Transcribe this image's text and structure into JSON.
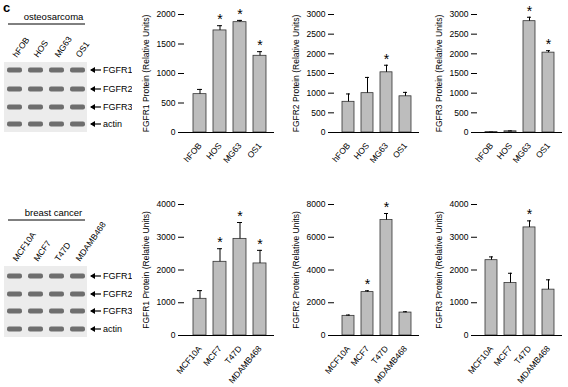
{
  "panel_label": "c",
  "blots": [
    {
      "title": "osteosarcoma",
      "lanes": [
        "hFOB",
        "HOS",
        "MG63",
        "OS1"
      ],
      "bands": [
        "FGFR1",
        "FGFR2",
        "FGFR3",
        "actin"
      ]
    },
    {
      "title": "breast cancer",
      "lanes": [
        "MCF10A",
        "MCF7",
        "T47D",
        "MDAMB468"
      ],
      "bands": [
        "FGFR1",
        "FGFR2",
        "FGFR3",
        "actin"
      ]
    }
  ],
  "chart_data": [
    {
      "type": "bar",
      "y_label": "FGFR1 Protein (Relative Units)",
      "categories": [
        "hFOB",
        "HOS",
        "MG63",
        "OS1"
      ],
      "values": [
        650,
        1730,
        1870,
        1300
      ],
      "errors": [
        80,
        80,
        30,
        70
      ],
      "color": "#bdbdbd",
      "ylim": [
        0,
        2000
      ],
      "yticks": [
        0,
        500,
        1000,
        1500,
        2000
      ],
      "annotations": [
        {
          "category": "HOS",
          "text": "*"
        },
        {
          "category": "MG63",
          "text": "*"
        },
        {
          "category": "OS1",
          "text": "*"
        }
      ]
    },
    {
      "type": "bar",
      "y_label": "FGFR2 Protein (Relative Units)",
      "categories": [
        "hFOB",
        "HOS",
        "MG63",
        "OS1"
      ],
      "values": [
        780,
        1000,
        1530,
        920
      ],
      "errors": [
        200,
        400,
        180,
        100
      ],
      "color": "#bdbdbd",
      "ylim": [
        0,
        3000
      ],
      "yticks": [
        0,
        500,
        1000,
        1500,
        2000,
        2500,
        3000
      ],
      "annotations": [
        {
          "category": "MG63",
          "text": "*"
        }
      ]
    },
    {
      "type": "bar",
      "y_label": "FGFR3 Protein (Relative Units)",
      "categories": [
        "hFOB",
        "HOS",
        "MG63",
        "OS1"
      ],
      "values": [
        10,
        30,
        2830,
        2030
      ],
      "errors": [
        0,
        10,
        100,
        50
      ],
      "color": "#bdbdbd",
      "ylim": [
        0,
        3000
      ],
      "yticks": [
        0,
        500,
        1000,
        1500,
        2000,
        2500,
        3000
      ],
      "annotations": [
        {
          "category": "MG63",
          "text": "*"
        },
        {
          "category": "OS1",
          "text": "*"
        }
      ]
    },
    {
      "type": "bar",
      "y_label": "FGFR1 Protein (Relative Units)",
      "categories": [
        "MCF10A",
        "MCF7",
        "T47D",
        "MDAMB468"
      ],
      "values": [
        1120,
        2250,
        2950,
        2200
      ],
      "errors": [
        250,
        400,
        500,
        400
      ],
      "color": "#bdbdbd",
      "ylim": [
        0,
        4000
      ],
      "yticks": [
        0,
        1000,
        2000,
        3000,
        4000
      ],
      "annotations": [
        {
          "category": "MCF7",
          "text": "*"
        },
        {
          "category": "T47D",
          "text": "*"
        },
        {
          "category": "MDAMB468",
          "text": "*"
        }
      ]
    },
    {
      "type": "bar",
      "y_label": "FGFR2 Protein (Relative Units)",
      "categories": [
        "MCF10A",
        "MCF7",
        "T47D",
        "MDAMB468"
      ],
      "values": [
        1200,
        2650,
        7050,
        1400
      ],
      "errors": [
        50,
        80,
        400,
        50
      ],
      "color": "#bdbdbd",
      "ylim": [
        0,
        8000
      ],
      "yticks": [
        0,
        2000,
        4000,
        6000,
        8000
      ],
      "annotations": [
        {
          "category": "MCF7",
          "text": "*"
        },
        {
          "category": "T47D",
          "text": "*"
        }
      ]
    },
    {
      "type": "bar",
      "y_label": "FGFR3 Protein (Relative Units)",
      "categories": [
        "MCF10A",
        "MCF7",
        "T47D",
        "MDAMB468"
      ],
      "values": [
        2300,
        1600,
        3300,
        1400
      ],
      "errors": [
        100,
        300,
        200,
        300
      ],
      "color": "#bdbdbd",
      "ylim": [
        0,
        4000
      ],
      "yticks": [
        0,
        1000,
        2000,
        3000,
        4000
      ],
      "annotations": [
        {
          "category": "T47D",
          "text": "*"
        }
      ]
    }
  ]
}
